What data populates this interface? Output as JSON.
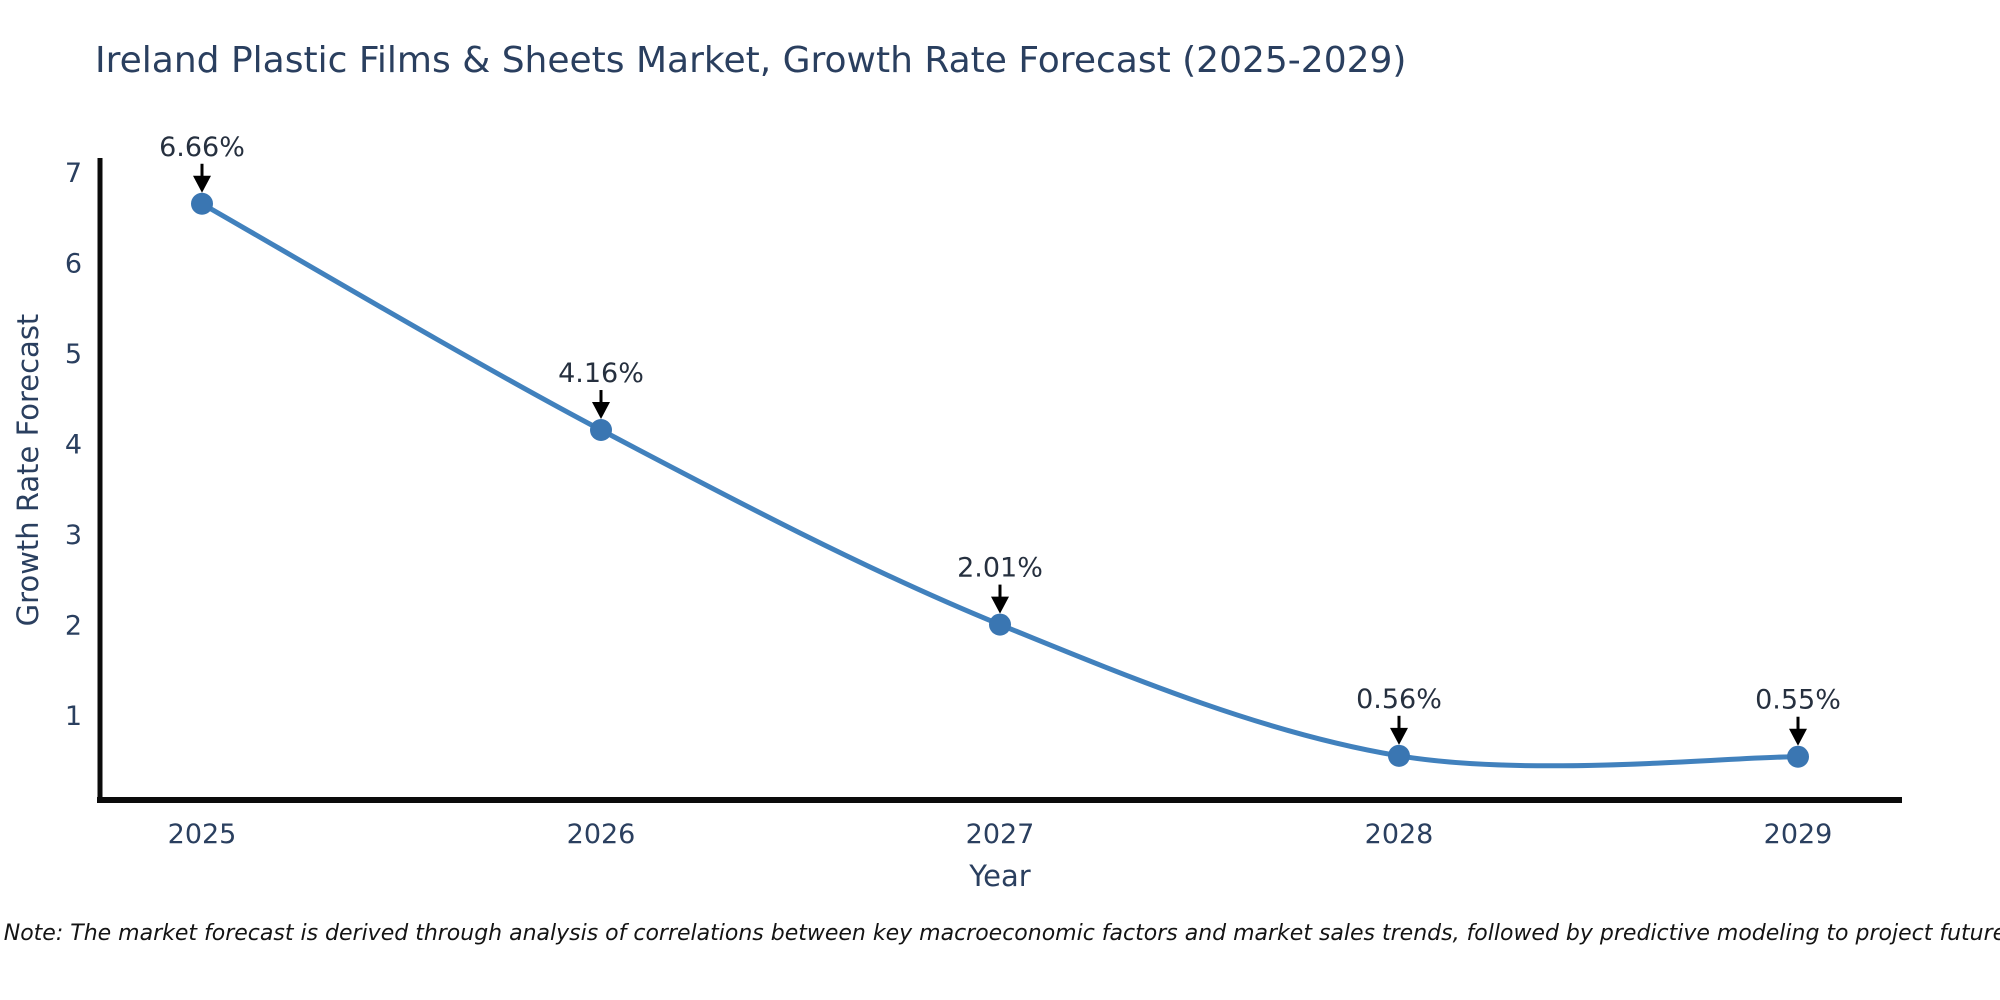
{
  "title": "Ireland Plastic Films & Sheets Market, Growth Rate Forecast (2025-2029)",
  "note": "Note: The market forecast is derived through analysis of correlations between key macroeconomic factors and market sales trends, followed by predictive modeling to project future sales.",
  "chart_data": {
    "type": "line",
    "title": "Ireland Plastic Films & Sheets Market, Growth Rate Forecast (2025-2029)",
    "categories": [
      "2025",
      "2026",
      "2027",
      "2028",
      "2029"
    ],
    "values": [
      6.66,
      4.16,
      2.01,
      0.56,
      0.55
    ],
    "point_labels": [
      "6.66%",
      "4.16%",
      "2.01%",
      "0.56%",
      "0.55%"
    ],
    "xlabel": "Year",
    "ylabel": "Growth Rate Forecast",
    "yticks": [
      1,
      2,
      3,
      4,
      5,
      6,
      7
    ],
    "ylim": [
      0,
      7.2
    ],
    "grid": false,
    "legend": false,
    "curve": "spline",
    "line_color": "#4181bd",
    "marker_color": "#3a76b2",
    "annotation_arrow_color": "#000000",
    "axis_color": "#0b0b0b",
    "text_color": "#2a3f5f",
    "background_color": "#ffffff"
  }
}
